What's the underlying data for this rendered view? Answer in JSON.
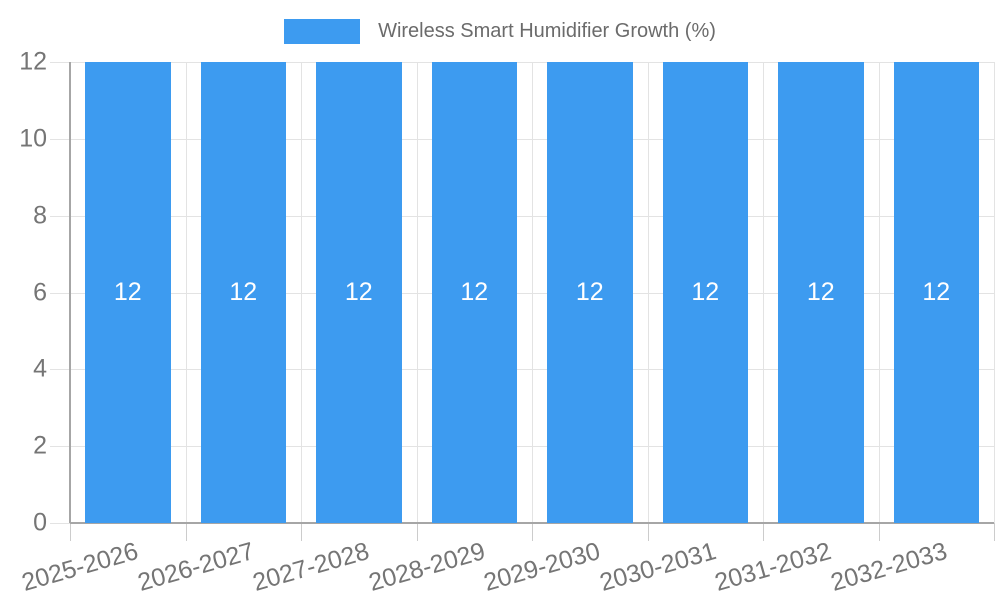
{
  "chart_data": {
    "type": "bar",
    "title": "Wireless Smart Humidifier Growth (%)",
    "legend": {
      "label": "Wireless Smart Humidifier Growth (%)",
      "position": "top-center"
    },
    "categories": [
      "2025-2026",
      "2026-2027",
      "2027-2028",
      "2028-2029",
      "2029-2030",
      "2030-2031",
      "2031-2032",
      "2032-2033"
    ],
    "series": [
      {
        "name": "Wireless Smart Humidifier Growth (%)",
        "values": [
          12,
          12,
          12,
          12,
          12,
          12,
          12,
          12
        ]
      }
    ],
    "bar_value_labels": [
      "12",
      "12",
      "12",
      "12",
      "12",
      "12",
      "12",
      "12"
    ],
    "xlabel": "",
    "ylabel": "",
    "ylim": [
      0,
      12
    ],
    "y_ticks": [
      0,
      2,
      4,
      6,
      8,
      10,
      12
    ],
    "grid": true,
    "x_tick_rotation_deg": -16,
    "colors": {
      "bar": "#3D9BF0",
      "gridline": "#E3E3E3",
      "axis_line": "#A6A6A6",
      "tick_mark": "#CCCCCC",
      "axis_label_text": "#757575",
      "legend_text": "#6B6B6B",
      "bar_label_text": "#FFFFFF",
      "background": "#FFFFFF"
    }
  }
}
